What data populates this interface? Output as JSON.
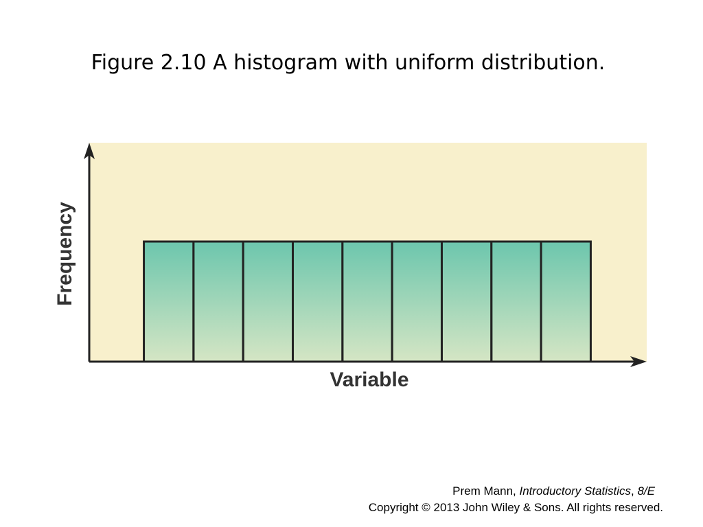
{
  "chart_data": {
    "type": "histogram",
    "title": "Figure 2.10 A histogram with uniform distribution.",
    "xlabel": "Variable",
    "ylabel": "Frequency",
    "bins": [
      0,
      1,
      2,
      3,
      4,
      5,
      6,
      7,
      8,
      9
    ],
    "values": [
      1,
      1,
      1,
      1,
      1,
      1,
      1,
      1,
      1
    ],
    "color": "#6cc6ad",
    "background": "#f8f0cc",
    "xlim": [
      -1.1,
      10.1
    ],
    "ylim": [
      0,
      1.8
    ]
  },
  "footer": {
    "line1": [
      "Prem Mann,",
      "Introductory Statistics",
      ",",
      "8/E"
    ],
    "line2": "Copyright © 2013 John Wiley & Sons. All rights reserved."
  }
}
